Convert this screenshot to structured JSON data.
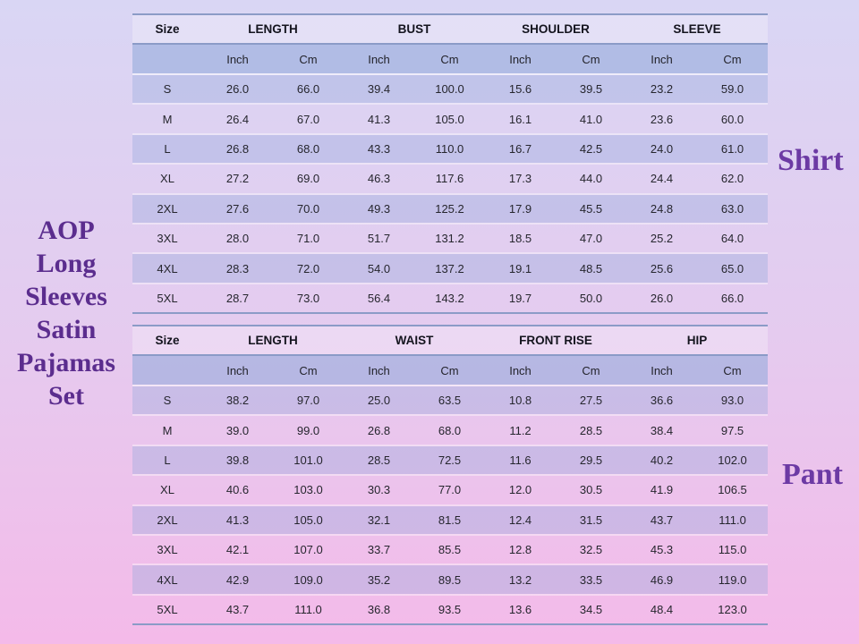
{
  "page": {
    "title": "AOP Long Sleeves Satin Pajamas Set",
    "title_lines": [
      "AOP",
      "Long",
      "Sleeves",
      "Satin",
      "Pajamas",
      "Set"
    ],
    "title_color": "#5B2D8E",
    "label_color": "#6C3AA4",
    "background_top_color": "#D9D6F4",
    "background_bottom_color": "#F4BAE9",
    "band_fill_color": "#92AADA",
    "border_color": "#8B9BC7"
  },
  "chart_data": [
    {
      "type": "table",
      "label": "Shirt",
      "size_column_header": "Size",
      "measure_columns": [
        "LENGTH",
        "BUST",
        "SHOULDER",
        "SLEEVE"
      ],
      "unit_subcolumns": [
        "Inch",
        "Cm"
      ],
      "rows": [
        {
          "size": "S",
          "values": [
            "26.0",
            "66.0",
            "39.4",
            "100.0",
            "15.6",
            "39.5",
            "23.2",
            "59.0"
          ]
        },
        {
          "size": "M",
          "values": [
            "26.4",
            "67.0",
            "41.3",
            "105.0",
            "16.1",
            "41.0",
            "23.6",
            "60.0"
          ]
        },
        {
          "size": "L",
          "values": [
            "26.8",
            "68.0",
            "43.3",
            "110.0",
            "16.7",
            "42.5",
            "24.0",
            "61.0"
          ]
        },
        {
          "size": "XL",
          "values": [
            "27.2",
            "69.0",
            "46.3",
            "117.6",
            "17.3",
            "44.0",
            "24.4",
            "62.0"
          ]
        },
        {
          "size": "2XL",
          "values": [
            "27.6",
            "70.0",
            "49.3",
            "125.2",
            "17.9",
            "45.5",
            "24.8",
            "63.0"
          ]
        },
        {
          "size": "3XL",
          "values": [
            "28.0",
            "71.0",
            "51.7",
            "131.2",
            "18.5",
            "47.0",
            "25.2",
            "64.0"
          ]
        },
        {
          "size": "4XL",
          "values": [
            "28.3",
            "72.0",
            "54.0",
            "137.2",
            "19.1",
            "48.5",
            "25.6",
            "65.0"
          ]
        },
        {
          "size": "5XL",
          "values": [
            "28.7",
            "73.0",
            "56.4",
            "143.2",
            "19.7",
            "50.0",
            "26.0",
            "66.0"
          ]
        }
      ]
    },
    {
      "type": "table",
      "label": "Pant",
      "size_column_header": "Size",
      "measure_columns": [
        "LENGTH",
        "WAIST",
        "FRONT RISE",
        "HIP"
      ],
      "unit_subcolumns": [
        "Inch",
        "Cm"
      ],
      "rows": [
        {
          "size": "S",
          "values": [
            "38.2",
            "97.0",
            "25.0",
            "63.5",
            "10.8",
            "27.5",
            "36.6",
            "93.0"
          ]
        },
        {
          "size": "M",
          "values": [
            "39.0",
            "99.0",
            "26.8",
            "68.0",
            "11.2",
            "28.5",
            "38.4",
            "97.5"
          ]
        },
        {
          "size": "L",
          "values": [
            "39.8",
            "101.0",
            "28.5",
            "72.5",
            "11.6",
            "29.5",
            "40.2",
            "102.0"
          ]
        },
        {
          "size": "XL",
          "values": [
            "40.6",
            "103.0",
            "30.3",
            "77.0",
            "12.0",
            "30.5",
            "41.9",
            "106.5"
          ]
        },
        {
          "size": "2XL",
          "values": [
            "41.3",
            "105.0",
            "32.1",
            "81.5",
            "12.4",
            "31.5",
            "43.7",
            "111.0"
          ]
        },
        {
          "size": "3XL",
          "values": [
            "42.1",
            "107.0",
            "33.7",
            "85.5",
            "12.8",
            "32.5",
            "45.3",
            "115.0"
          ]
        },
        {
          "size": "4XL",
          "values": [
            "42.9",
            "109.0",
            "35.2",
            "89.5",
            "13.2",
            "33.5",
            "46.9",
            "119.0"
          ]
        },
        {
          "size": "5XL",
          "values": [
            "43.7",
            "111.0",
            "36.8",
            "93.5",
            "13.6",
            "34.5",
            "48.4",
            "123.0"
          ]
        }
      ]
    }
  ]
}
